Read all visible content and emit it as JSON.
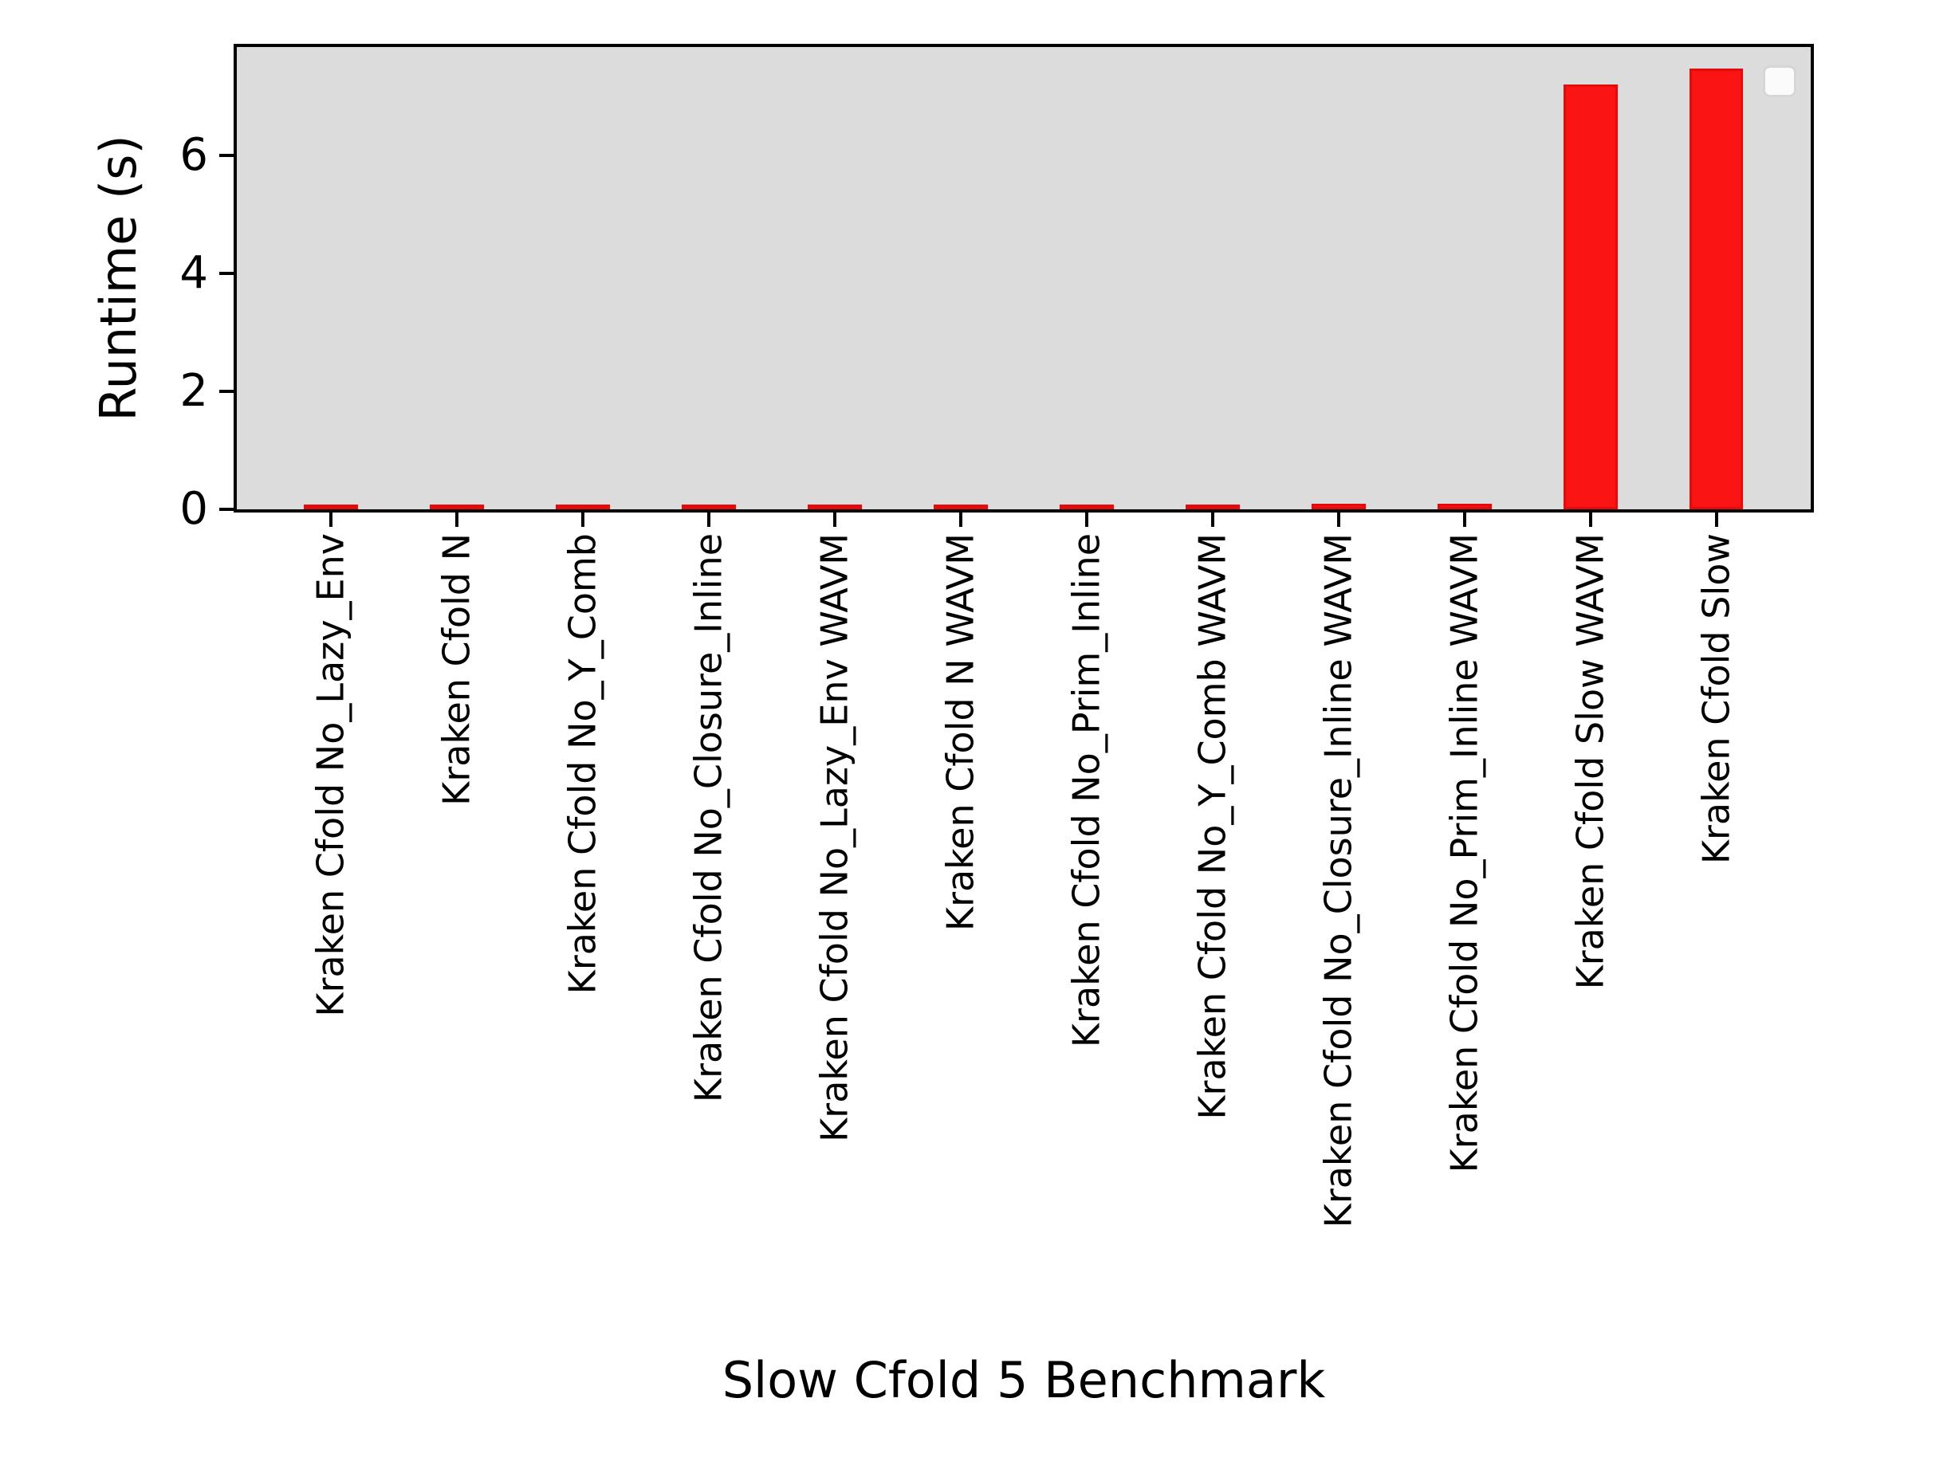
{
  "chart_data": {
    "type": "bar",
    "title": "",
    "xlabel": "Slow Cfold 5 Benchmark",
    "ylabel": "Runtime (s)",
    "categories": [
      "Kraken Cfold No_Lazy_Env",
      "Kraken Cfold N",
      "Kraken Cfold No_Y_Comb",
      "Kraken Cfold No_Closure_Inline",
      "Kraken Cfold No_Lazy_Env WAVM",
      "Kraken Cfold N WAVM",
      "Kraken Cfold No_Prim_Inline",
      "Kraken Cfold No_Y_Comb WAVM",
      "Kraken Cfold No_Closure_Inline WAVM",
      "Kraken Cfold No_Prim_Inline WAVM",
      "Kraken Cfold Slow WAVM",
      "Kraken Cfold Slow"
    ],
    "values": [
      0.05,
      0.05,
      0.06,
      0.08,
      0.08,
      0.06,
      0.06,
      0.06,
      0.09,
      0.1,
      7.21,
      7.47
    ],
    "yticks": [
      0,
      2,
      4,
      6
    ],
    "yticklabels": [
      "0",
      "2",
      "4",
      "6"
    ],
    "ylim": [
      0,
      7.84
    ],
    "grid": false,
    "legend": {
      "visible": true,
      "entries": [],
      "position": "upper right"
    },
    "colors": {
      "bar_fill": "#fa1414",
      "bar_edge": "#e30b0b",
      "plot_background": "#dcdcdc",
      "figure_background": "#ffffff",
      "spine": "#000000",
      "text": "#000000"
    }
  }
}
